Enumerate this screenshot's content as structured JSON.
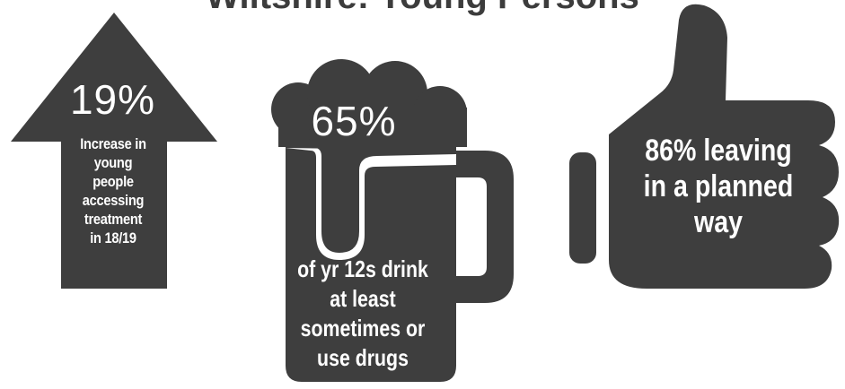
{
  "title": "Wiltshire: Young Persons",
  "colors": {
    "shape_fill": "#3e3e3e",
    "text_on_shape": "#ffffff",
    "background": "#ffffff"
  },
  "icons": [
    "arrow-up-icon",
    "beer-mug-icon",
    "thumbs-up-icon"
  ],
  "stats": {
    "arrow": {
      "percent": "19%",
      "caption_lines": [
        "Increase in",
        "young",
        "people",
        "accessing",
        "treatment",
        "in 18/19"
      ]
    },
    "mug": {
      "percent": "65%",
      "caption_lines": [
        "of yr 12s drink",
        "at least",
        "sometimes or",
        "use drugs"
      ]
    },
    "thumb": {
      "caption_lines": [
        "86% leaving",
        "in a planned",
        "way"
      ]
    }
  }
}
